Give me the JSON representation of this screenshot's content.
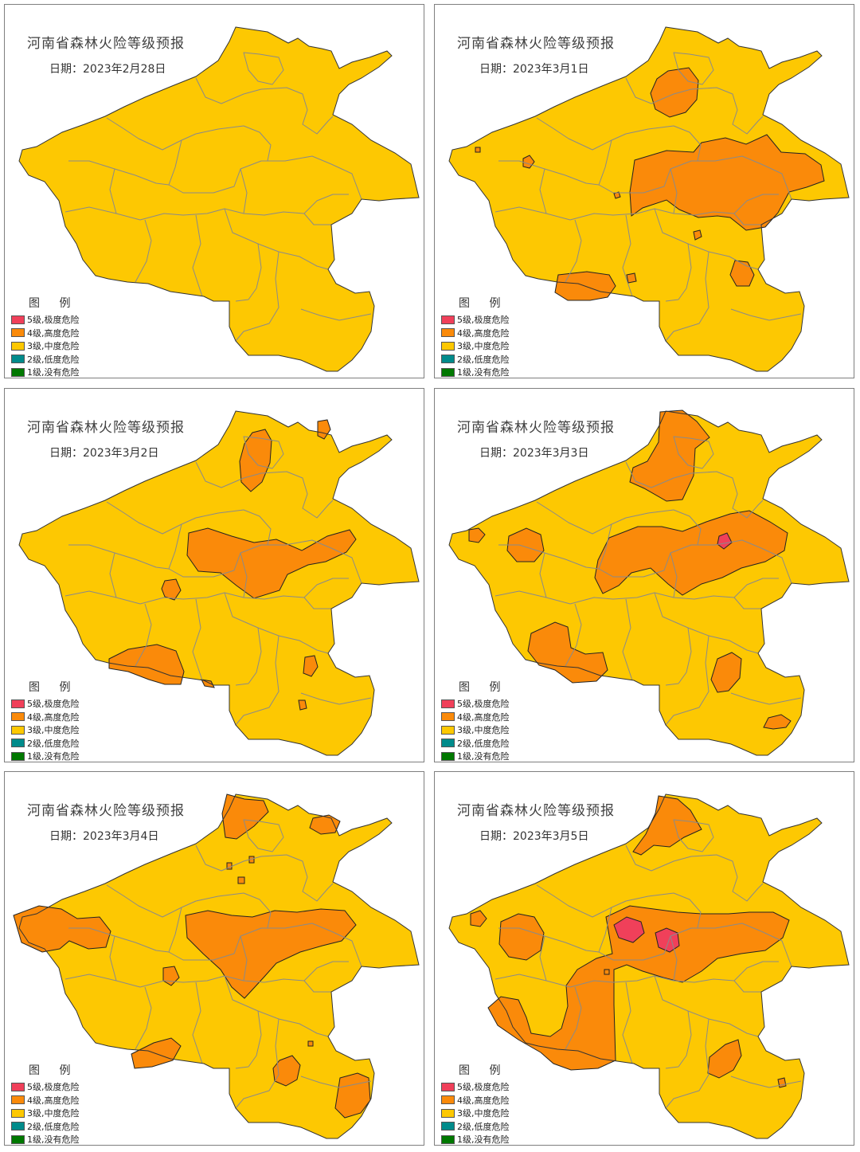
{
  "colors": {
    "level5": "#f0405a",
    "level4": "#fa8a0a",
    "level3": "#fdc802",
    "level2": "#008b8b",
    "level1": "#007800",
    "boundary": "#8a8a8a",
    "outline": "#333333"
  },
  "legend": {
    "title": "图 例",
    "items": [
      {
        "label": "5级,极度危险",
        "color": "#f0405a"
      },
      {
        "label": "4级,高度危险",
        "color": "#fa8a0a"
      },
      {
        "label": "3级,中度危险",
        "color": "#fdc802"
      },
      {
        "label": "2级,低度危险",
        "color": "#008b8b"
      },
      {
        "label": "1级,没有危险",
        "color": "#007800"
      }
    ]
  },
  "panels": [
    {
      "title": "河南省森林火险等级预报",
      "date": "日期：2023年2月28日"
    },
    {
      "title": "河南省森林火险等级预报",
      "date": "日期：2023年3月1日"
    },
    {
      "title": "河南省森林火险等级预报",
      "date": "日期：2023年3月2日"
    },
    {
      "title": "河南省森林火险等级预报",
      "date": "日期：2023年3月3日"
    },
    {
      "title": "河南省森林火险等级预报",
      "date": "日期：2023年3月4日"
    },
    {
      "title": "河南省森林火险等级预报",
      "date": "日期：2023年3月5日"
    }
  ]
}
